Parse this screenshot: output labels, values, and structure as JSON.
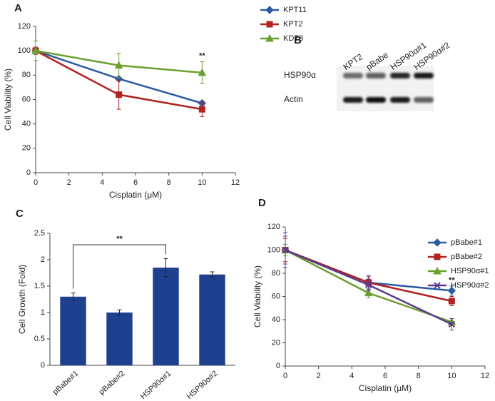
{
  "chart_data": [
    {
      "type": "line",
      "label": "A",
      "x_label": "Cisplatin (μM)",
      "y_label": "Cell Viability (%)",
      "annotation": "**",
      "x": [
        0,
        5,
        10
      ],
      "xlim": [
        0,
        12
      ],
      "xticks": [
        0,
        2,
        4,
        6,
        8,
        10,
        12
      ],
      "ylim": [
        0,
        120
      ],
      "yticks": [
        0,
        20,
        40,
        60,
        80,
        100,
        120
      ],
      "grid": false,
      "series": [
        {
          "name": "KPT11",
          "color": "#2b5aa5",
          "marker": "diamond",
          "values": [
            100,
            77,
            57
          ],
          "errors": [
            1,
            1,
            1.5
          ]
        },
        {
          "name": "KPT2",
          "color": "#b22222",
          "marker": "square",
          "values": [
            100,
            64,
            52
          ],
          "errors": [
            3,
            12,
            6
          ]
        },
        {
          "name": "KDT3",
          "color": "#6aa12e",
          "marker": "triangle",
          "values": [
            100,
            88,
            82
          ],
          "errors": [
            8,
            10,
            9
          ]
        }
      ]
    },
    {
      "type": "blot",
      "label": "B",
      "lanes": [
        "KPT2",
        "pBabe",
        "HSP90α#1",
        "HSP90α#2"
      ],
      "rows": [
        "HSP90α",
        "Actin"
      ]
    },
    {
      "type": "bar",
      "label": "C",
      "y_label": "Cell Growth (Fold)",
      "annotation": "**",
      "color": "#1f3f8f",
      "categories": [
        "pBabe#1",
        "pBabe#2",
        "HSP90α#1",
        "HSP90α#2"
      ],
      "values": [
        1.3,
        1.0,
        1.85,
        1.72
      ],
      "errors": [
        0.07,
        0.05,
        0.17,
        0.05
      ],
      "ylim": [
        0,
        2.5
      ],
      "yticks": [
        0,
        0.5,
        1,
        1.5,
        2,
        2.5
      ],
      "grid": false
    },
    {
      "type": "line",
      "label": "D",
      "x_label": "Cisplatin (μM)",
      "y_label": "Cell Viability (%)",
      "annotation": "**",
      "x": [
        0,
        5,
        10
      ],
      "xlim": [
        0,
        12
      ],
      "xticks": [
        0,
        2,
        4,
        6,
        8,
        10,
        12
      ],
      "ylim": [
        0,
        120
      ],
      "yticks": [
        0,
        20,
        40,
        60,
        80,
        100,
        120
      ],
      "grid": false,
      "series": [
        {
          "name": "pBabe#1",
          "color": "#2b5aa5",
          "marker": "diamond",
          "values": [
            100,
            72,
            65
          ],
          "errors": [
            15,
            6,
            4
          ]
        },
        {
          "name": "pBabe#2",
          "color": "#b22222",
          "marker": "square",
          "values": [
            100,
            72,
            56
          ],
          "errors": [
            10,
            5,
            4
          ]
        },
        {
          "name": "HSP90α#1",
          "color": "#6aa12e",
          "marker": "triangle",
          "values": [
            100,
            63,
            38
          ],
          "errors": [
            5,
            4,
            3
          ]
        },
        {
          "name": "HSP90α#2",
          "color": "#5b3a8e",
          "marker": "x",
          "values": [
            100,
            70,
            36
          ],
          "errors": [
            12,
            5,
            5
          ]
        }
      ]
    }
  ]
}
